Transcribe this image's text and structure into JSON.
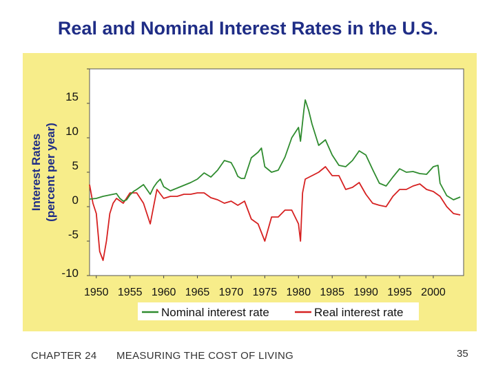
{
  "slide": {
    "title": "Real and Nominal Interest Rates in the U.S."
  },
  "footer": {
    "chapter": "CHAPTER 24",
    "subtitle": "MEASURING THE COST OF LIVING",
    "page": "35"
  },
  "colors": {
    "panel": "#f7ed8a",
    "nominal": "#2e8b2e",
    "real": "#d62020",
    "title": "#1f2d86"
  },
  "chart_data": {
    "type": "line",
    "title": "",
    "xlabel": "",
    "ylabel": [
      "Interest Rates",
      "(percent per year)"
    ],
    "xlim": [
      1949,
      2004.5
    ],
    "ylim": [
      -10,
      20
    ],
    "xticks": [
      1950,
      1955,
      1960,
      1965,
      1970,
      1975,
      1980,
      1985,
      1990,
      1995,
      2000
    ],
    "xtick_labels": [
      "1950",
      "1955",
      "1960",
      "1965",
      "1970",
      "1975",
      "1980",
      "1985",
      "1990",
      "1995",
      "2000"
    ],
    "yticks": [
      -10,
      -5,
      0,
      5,
      10,
      15
    ],
    "ytick_labels": [
      "-10",
      "-5",
      "0",
      "5",
      "10",
      "15"
    ],
    "grid": false,
    "legend_position": "bottom",
    "series": [
      {
        "name": "Nominal interest rate",
        "color": "#2e8b2e",
        "points": [
          [
            1949.0,
            1.1
          ],
          [
            1950.0,
            1.2
          ],
          [
            1951.0,
            1.5
          ],
          [
            1952.0,
            1.7
          ],
          [
            1953.0,
            1.9
          ],
          [
            1953.5,
            1.2
          ],
          [
            1954.0,
            0.8
          ],
          [
            1954.5,
            1.0
          ],
          [
            1955.0,
            1.7
          ],
          [
            1955.5,
            2.2
          ],
          [
            1956.0,
            2.5
          ],
          [
            1957.0,
            3.2
          ],
          [
            1958.0,
            1.8
          ],
          [
            1958.5,
            2.8
          ],
          [
            1959.0,
            3.5
          ],
          [
            1959.5,
            4.0
          ],
          [
            1960.0,
            2.9
          ],
          [
            1961.0,
            2.3
          ],
          [
            1962.0,
            2.7
          ],
          [
            1963.0,
            3.1
          ],
          [
            1964.0,
            3.5
          ],
          [
            1965.0,
            4.0
          ],
          [
            1966.0,
            4.9
          ],
          [
            1967.0,
            4.3
          ],
          [
            1968.0,
            5.3
          ],
          [
            1969.0,
            6.7
          ],
          [
            1970.0,
            6.4
          ],
          [
            1970.5,
            5.5
          ],
          [
            1971.0,
            4.4
          ],
          [
            1971.5,
            4.1
          ],
          [
            1972.0,
            4.1
          ],
          [
            1973.0,
            7.1
          ],
          [
            1974.0,
            7.9
          ],
          [
            1974.5,
            8.5
          ],
          [
            1975.0,
            5.8
          ],
          [
            1976.0,
            5.0
          ],
          [
            1977.0,
            5.3
          ],
          [
            1978.0,
            7.2
          ],
          [
            1979.0,
            10.0
          ],
          [
            1980.0,
            11.5
          ],
          [
            1980.3,
            9.5
          ],
          [
            1980.8,
            14.0
          ],
          [
            1981.0,
            15.5
          ],
          [
            1981.5,
            14.0
          ],
          [
            1982.0,
            12.0
          ],
          [
            1983.0,
            8.9
          ],
          [
            1984.0,
            9.7
          ],
          [
            1985.0,
            7.5
          ],
          [
            1986.0,
            6.0
          ],
          [
            1987.0,
            5.8
          ],
          [
            1988.0,
            6.7
          ],
          [
            1989.0,
            8.1
          ],
          [
            1990.0,
            7.5
          ],
          [
            1991.0,
            5.4
          ],
          [
            1992.0,
            3.4
          ],
          [
            1993.0,
            3.0
          ],
          [
            1994.0,
            4.3
          ],
          [
            1995.0,
            5.5
          ],
          [
            1996.0,
            5.0
          ],
          [
            1997.0,
            5.1
          ],
          [
            1998.0,
            4.8
          ],
          [
            1999.0,
            4.7
          ],
          [
            2000.0,
            5.8
          ],
          [
            2000.7,
            6.0
          ],
          [
            2001.0,
            3.4
          ],
          [
            2002.0,
            1.6
          ],
          [
            2003.0,
            1.0
          ],
          [
            2004.0,
            1.4
          ]
        ]
      },
      {
        "name": "Real interest rate",
        "color": "#d62020",
        "points": [
          [
            1949.0,
            3.2
          ],
          [
            1949.5,
            0.5
          ],
          [
            1950.0,
            -1.0
          ],
          [
            1950.5,
            -6.5
          ],
          [
            1951.0,
            -7.8
          ],
          [
            1951.5,
            -5.0
          ],
          [
            1952.0,
            -1.0
          ],
          [
            1952.5,
            0.5
          ],
          [
            1953.0,
            1.2
          ],
          [
            1954.0,
            0.5
          ],
          [
            1955.0,
            2.0
          ],
          [
            1956.0,
            2.0
          ],
          [
            1957.0,
            0.5
          ],
          [
            1958.0,
            -2.5
          ],
          [
            1958.5,
            0.0
          ],
          [
            1959.0,
            2.5
          ],
          [
            1960.0,
            1.2
          ],
          [
            1961.0,
            1.5
          ],
          [
            1962.0,
            1.5
          ],
          [
            1963.0,
            1.8
          ],
          [
            1964.0,
            1.8
          ],
          [
            1965.0,
            2.0
          ],
          [
            1966.0,
            2.0
          ],
          [
            1967.0,
            1.3
          ],
          [
            1968.0,
            1.0
          ],
          [
            1969.0,
            0.5
          ],
          [
            1970.0,
            0.8
          ],
          [
            1971.0,
            0.2
          ],
          [
            1972.0,
            0.8
          ],
          [
            1973.0,
            -1.8
          ],
          [
            1974.0,
            -2.5
          ],
          [
            1975.0,
            -5.0
          ],
          [
            1976.0,
            -1.5
          ],
          [
            1977.0,
            -1.5
          ],
          [
            1978.0,
            -0.5
          ],
          [
            1979.0,
            -0.5
          ],
          [
            1980.0,
            -2.5
          ],
          [
            1980.3,
            -5.0
          ],
          [
            1980.6,
            2.0
          ],
          [
            1981.0,
            4.0
          ],
          [
            1982.0,
            4.5
          ],
          [
            1983.0,
            5.0
          ],
          [
            1984.0,
            5.8
          ],
          [
            1985.0,
            4.5
          ],
          [
            1986.0,
            4.5
          ],
          [
            1987.0,
            2.5
          ],
          [
            1988.0,
            2.8
          ],
          [
            1989.0,
            3.5
          ],
          [
            1990.0,
            1.8
          ],
          [
            1991.0,
            0.5
          ],
          [
            1992.0,
            0.2
          ],
          [
            1993.0,
            0.0
          ],
          [
            1994.0,
            1.5
          ],
          [
            1995.0,
            2.5
          ],
          [
            1996.0,
            2.5
          ],
          [
            1997.0,
            3.0
          ],
          [
            1998.0,
            3.3
          ],
          [
            1999.0,
            2.5
          ],
          [
            2000.0,
            2.2
          ],
          [
            2001.0,
            1.5
          ],
          [
            2002.0,
            0.0
          ],
          [
            2003.0,
            -1.0
          ],
          [
            2004.0,
            -1.2
          ]
        ]
      }
    ]
  }
}
